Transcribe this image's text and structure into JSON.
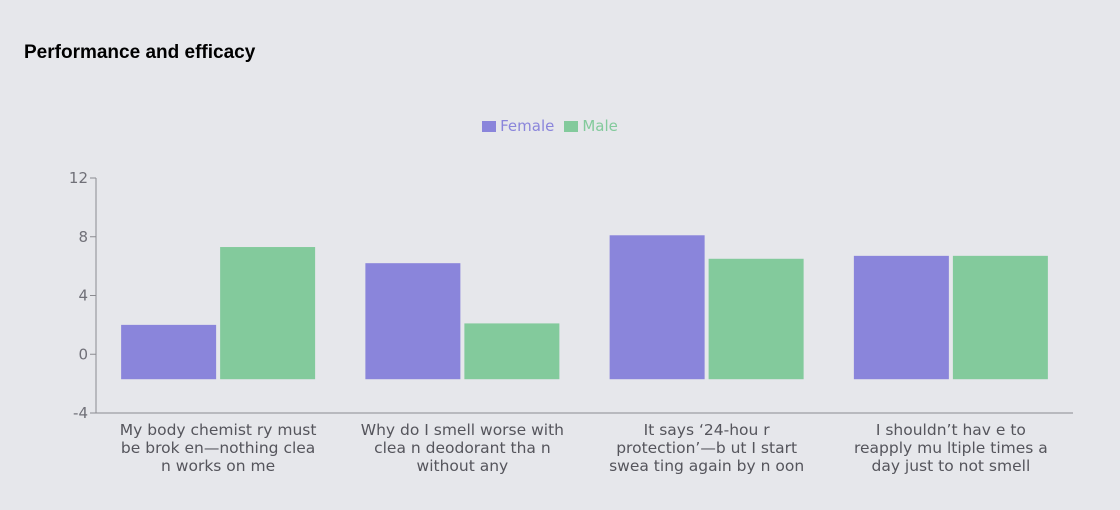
{
  "chart_data": {
    "type": "bar",
    "title": "Performance and efficacy",
    "categories": [
      [
        "My body chemist ry must",
        "be brok en—nothing clea",
        "n works on me"
      ],
      [
        "Why do I smell worse with",
        "clea n deodorant tha n",
        "without any"
      ],
      [
        "It says ‘24-hou r",
        "protection’—b ut I start",
        "swea ting again by n oon"
      ],
      [
        "I shouldn’t hav e to",
        "reapply mu ltiple times a",
        "day just to not smell"
      ]
    ],
    "series": [
      {
        "name": "Female",
        "color": "#8a85db",
        "values": [
          2,
          6.2,
          8.1,
          6.7
        ]
      },
      {
        "name": "Male",
        "color": "#83ca9c",
        "values": [
          7.3,
          2.1,
          6.5,
          6.7
        ]
      }
    ],
    "baseline": -1.7,
    "ylim": [
      -4,
      12
    ],
    "yticks": [
      -4,
      0,
      4,
      8,
      12
    ],
    "legend_position": "top-center",
    "grid": false
  }
}
